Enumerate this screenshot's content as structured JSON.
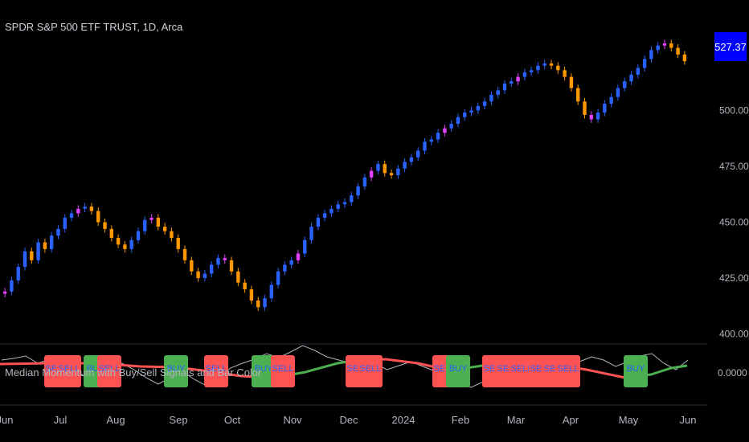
{
  "header": {
    "title": "SPDR S&P 500 ETF TRUST, 1D, Arca"
  },
  "indicator": {
    "title": "Median Momentum with Buy/Sell Signals and Bar Color"
  },
  "price_tag": {
    "value": "527.37",
    "color": "#0000ff"
  },
  "colors": {
    "background": "#000000",
    "bull_bar": "#2962ff",
    "bear_bar": "#ff9800",
    "neutral_up": "#4caf50",
    "neutral_down": "#e040fb",
    "median_up": "#4caf50",
    "median_down": "#ff5252",
    "momentum_line": "#b2b5be",
    "buy_box": "#4caf50",
    "sell_box": "#ff5252",
    "signal_text": "#2962ff"
  },
  "chart_data": [
    {
      "type": "candlestick",
      "title": "SPDR S&P 500 ETF TRUST, 1D, Arca",
      "x_ticks": [
        "Jun",
        "Jul",
        "Aug",
        "Sep",
        "Oct",
        "Nov",
        "Dec",
        "2024",
        "Feb",
        "Mar",
        "Apr",
        "May",
        "Jun"
      ],
      "y_ticks": [
        "400.00",
        "425.00",
        "450.00",
        "475.00",
        "500.00"
      ],
      "ylim": [
        397,
        535
      ],
      "last_price": 527.37,
      "closes": [
        419,
        424,
        430,
        437,
        433,
        441,
        438,
        444,
        447,
        452,
        454,
        456,
        457,
        455,
        450,
        447,
        443,
        440,
        438,
        442,
        446,
        451,
        452,
        448,
        446,
        443,
        438,
        433,
        428,
        425,
        427,
        431,
        434,
        433,
        428,
        423,
        420,
        415,
        412,
        416,
        422,
        428,
        431,
        433,
        436,
        442,
        448,
        452,
        454,
        456,
        458,
        459,
        462,
        466,
        470,
        473,
        476,
        472,
        471,
        474,
        477,
        479,
        482,
        486,
        487,
        490,
        492,
        494,
        497,
        499,
        500,
        502,
        504,
        507,
        509,
        512,
        513,
        515,
        517,
        518,
        520,
        521,
        520,
        518,
        515,
        510,
        504,
        498,
        496,
        499,
        503,
        506,
        510,
        513,
        516,
        519,
        523,
        527,
        529,
        530,
        528,
        525,
        522
      ]
    },
    {
      "type": "line",
      "title": "Median Momentum with Buy/Sell Signals and Bar Color",
      "y_ticks": [
        "0.0000"
      ],
      "signals": [
        {
          "label": "SELL",
          "type": "sell"
        },
        {
          "label": "SELL",
          "type": "sell"
        },
        {
          "label": "BUY",
          "type": "buy"
        },
        {
          "label": "SELL",
          "type": "sell"
        },
        {
          "label": "BUY",
          "type": "buy"
        },
        {
          "label": "SELL",
          "type": "sell"
        },
        {
          "label": "BUY",
          "type": "buy"
        },
        {
          "label": "SELL",
          "type": "sell"
        },
        {
          "label": "SELL",
          "type": "sell"
        },
        {
          "label": "SELL",
          "type": "sell"
        },
        {
          "label": "SELL",
          "type": "sell"
        },
        {
          "label": "BUY",
          "type": "buy"
        },
        {
          "label": "SELL",
          "type": "sell"
        },
        {
          "label": "SELL",
          "type": "sell"
        },
        {
          "label": "SELL",
          "type": "sell"
        },
        {
          "label": "SELL",
          "type": "sell"
        },
        {
          "label": "SELL",
          "type": "sell"
        },
        {
          "label": "SELL",
          "type": "sell"
        },
        {
          "label": "BUY",
          "type": "buy"
        }
      ]
    }
  ]
}
